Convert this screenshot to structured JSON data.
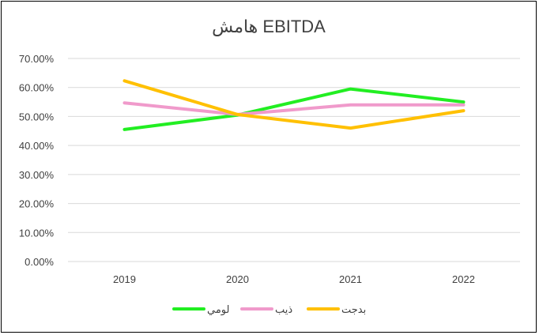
{
  "chart_data": {
    "type": "line",
    "title": "هامش EBITDA",
    "categories": [
      "2019",
      "2020",
      "2021",
      "2022"
    ],
    "y_ticks": [
      "0.00%",
      "10.00%",
      "20.00%",
      "30.00%",
      "40.00%",
      "50.00%",
      "60.00%",
      "70.00%"
    ],
    "ylim": [
      0,
      70
    ],
    "grid": true,
    "legend_position": "bottom",
    "series": [
      {
        "name": "لومي",
        "color": "#22ee22",
        "values": [
          45.5,
          50.5,
          59.5,
          55.0
        ]
      },
      {
        "name": "ذيب",
        "color": "#f09acb",
        "values": [
          54.7,
          50.7,
          54.0,
          54.0
        ]
      },
      {
        "name": "بدجت",
        "color": "#ffc000",
        "values": [
          62.3,
          50.7,
          46.0,
          52.0
        ]
      }
    ]
  }
}
